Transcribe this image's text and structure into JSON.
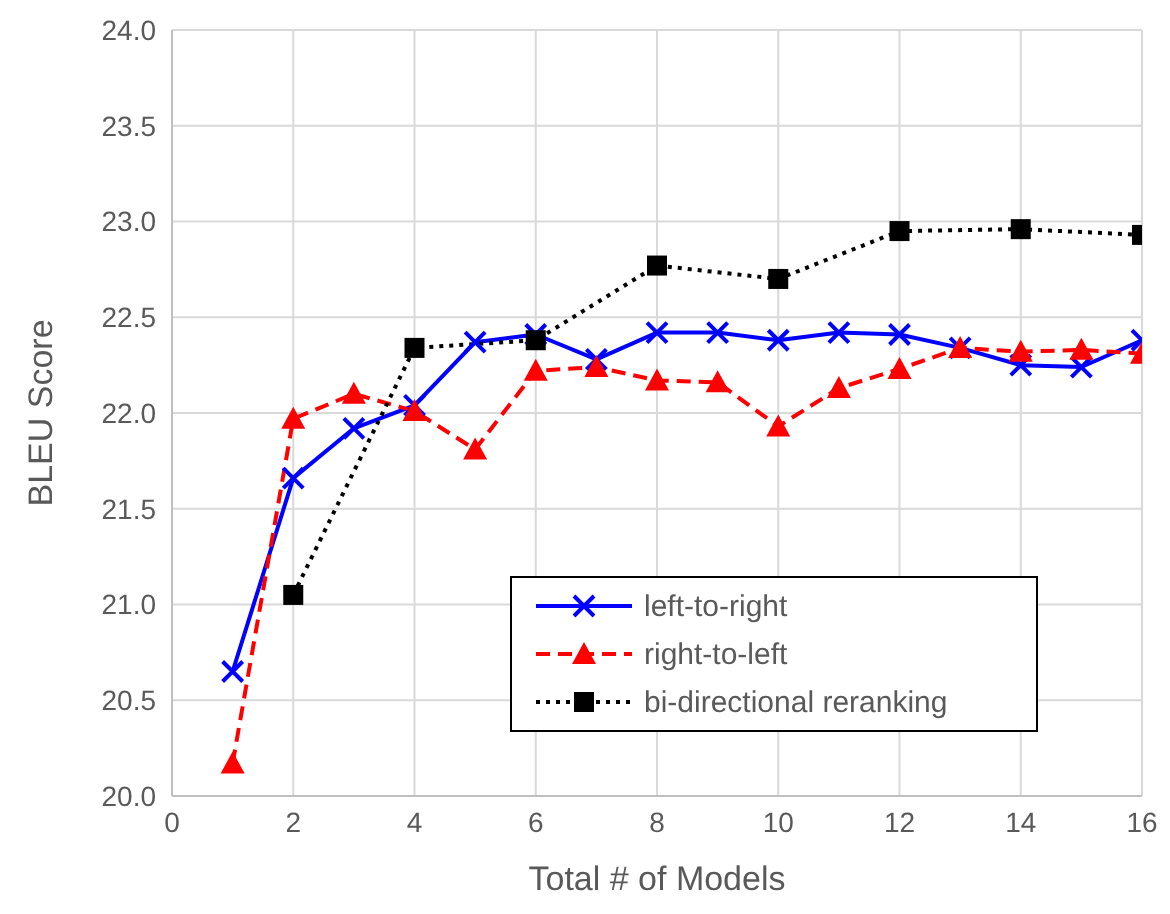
{
  "chart_data": {
    "type": "line",
    "xlabel": "Total # of Models",
    "ylabel": "BLEU Score",
    "xlim": [
      0,
      16
    ],
    "xticks": [
      0,
      2,
      4,
      6,
      8,
      10,
      12,
      14,
      16
    ],
    "ylim": [
      20.0,
      24.0
    ],
    "yticks": [
      {
        "value": 20,
        "label": "20.0"
      },
      {
        "value": 20.5,
        "label": "20.5"
      },
      {
        "value": 21,
        "label": "21.0"
      },
      {
        "value": 21.5,
        "label": "21.5"
      },
      {
        "value": 22,
        "label": "22.0"
      },
      {
        "value": 22.5,
        "label": "22.5"
      },
      {
        "value": 23,
        "label": "23.0"
      },
      {
        "value": 23.5,
        "label": "23.5"
      },
      {
        "value": 24,
        "label": "24.0"
      }
    ],
    "grid": true,
    "legend": "bottom right",
    "series": [
      {
        "name": "left-to-right",
        "color": "#0000ff",
        "marker": "cross",
        "line_style": "solid",
        "x": [
          1,
          2,
          3,
          4,
          5,
          6,
          7,
          8,
          9,
          10,
          11,
          12,
          13,
          14,
          15,
          16
        ],
        "values": [
          20.65,
          21.66,
          21.92,
          22.04,
          22.37,
          22.41,
          22.28,
          22.42,
          22.42,
          22.38,
          22.42,
          22.41,
          22.34,
          22.25,
          22.24,
          22.38
        ]
      },
      {
        "name": "right-to-left",
        "color": "#ff0000",
        "marker": "triangle",
        "line_style": "dashed",
        "x": [
          1,
          2,
          3,
          4,
          5,
          6,
          7,
          8,
          9,
          10,
          11,
          12,
          13,
          14,
          15,
          16
        ],
        "values": [
          20.17,
          21.97,
          22.1,
          22.01,
          21.81,
          22.22,
          22.24,
          22.17,
          22.16,
          21.93,
          22.13,
          22.23,
          22.34,
          22.32,
          22.33,
          22.31
        ]
      },
      {
        "name": "bi-directional reranking",
        "color": "#000000",
        "marker": "square",
        "line_style": "dotted",
        "x": [
          2,
          4,
          6,
          8,
          10,
          12,
          14,
          16
        ],
        "values": [
          21.05,
          22.34,
          22.38,
          22.77,
          22.7,
          22.95,
          22.96,
          22.93
        ]
      }
    ]
  }
}
